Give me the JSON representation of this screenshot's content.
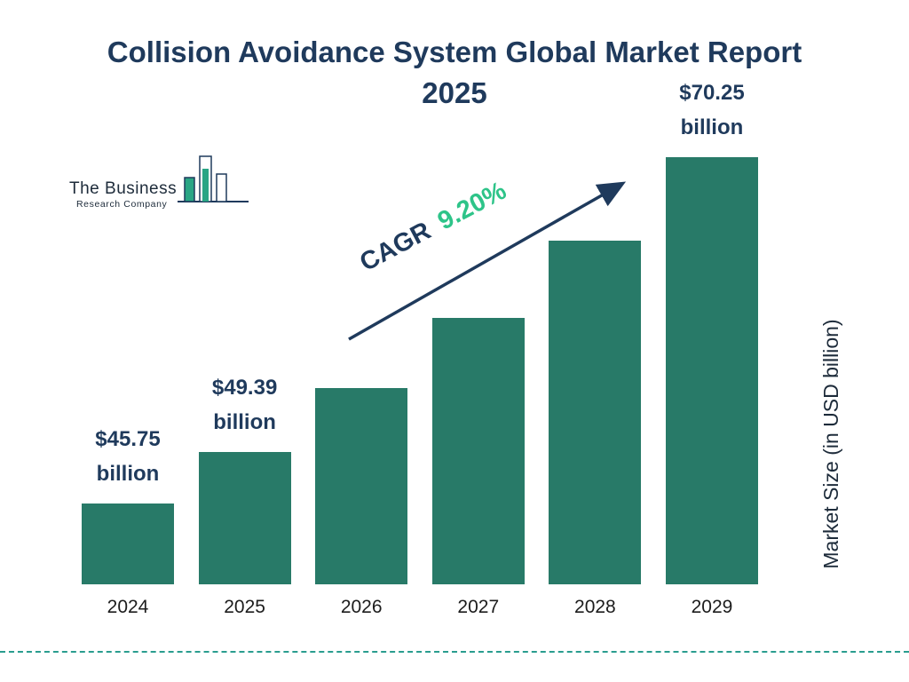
{
  "title": "Collision Avoidance System Global Market Report 2025",
  "logo": {
    "name_line1": "The Business",
    "name_line2": "Research Company"
  },
  "cagr": {
    "label": "CAGR",
    "value": "9.20%"
  },
  "y_axis_label": "Market Size (in USD billion)",
  "chart_data": {
    "type": "bar",
    "title": "Collision Avoidance System Global Market Report 2025",
    "categories": [
      "2024",
      "2025",
      "2026",
      "2027",
      "2028",
      "2029"
    ],
    "values": [
      45.75,
      49.39,
      53.93,
      58.89,
      64.31,
      70.25
    ],
    "labeled_values": [
      {
        "index": 0,
        "amount": "$45.75",
        "unit": "billion"
      },
      {
        "index": 1,
        "amount": "$49.39",
        "unit": "billion"
      },
      {
        "index": 5,
        "amount": "$70.25",
        "unit": "billion"
      }
    ],
    "xlabel": "",
    "ylabel": "Market Size (in USD billion)",
    "ylim": [
      0,
      75
    ],
    "grid": false,
    "legend": false,
    "cagr_annotation": "CAGR 9.20%"
  },
  "colors": {
    "bar": "#287a68",
    "title_navy": "#1f3a5c",
    "cagr_green": "#2ec489",
    "dashed_line": "#2a9d8f",
    "logo_green": "#2aa584"
  }
}
